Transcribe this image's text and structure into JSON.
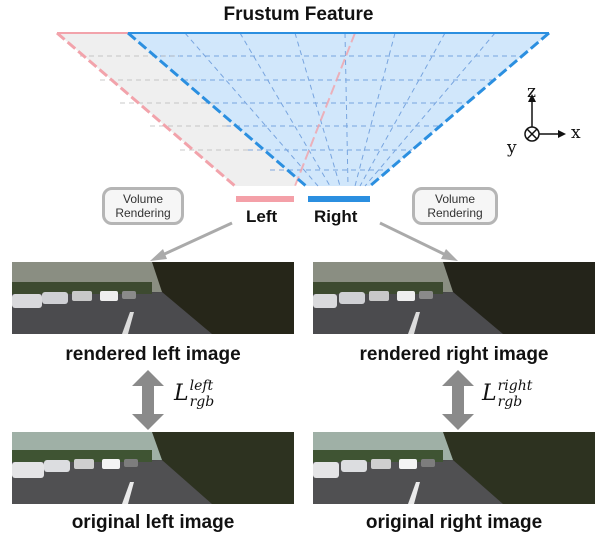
{
  "title": "Frustum Feature",
  "frustum": {
    "left_label": "Left",
    "right_label": "Right",
    "left_color": "#f4a0a8",
    "right_color": "#2b8fe0",
    "fill_right": "#cfe6fb",
    "fill_left": "#eeeeee"
  },
  "volume_rendering": {
    "line1": "Volume",
    "line2": "Rendering"
  },
  "axes": {
    "z": "z",
    "y": "y",
    "x": "x"
  },
  "left_column": {
    "rendered_caption": "rendered left image",
    "original_caption": "original left image",
    "loss_base": "L",
    "loss_sup": "left",
    "loss_sub": "rgb"
  },
  "right_column": {
    "rendered_caption": "rendered right image",
    "original_caption": "original right image",
    "loss_base": "L",
    "loss_sup": "right",
    "loss_sub": "rgb"
  }
}
